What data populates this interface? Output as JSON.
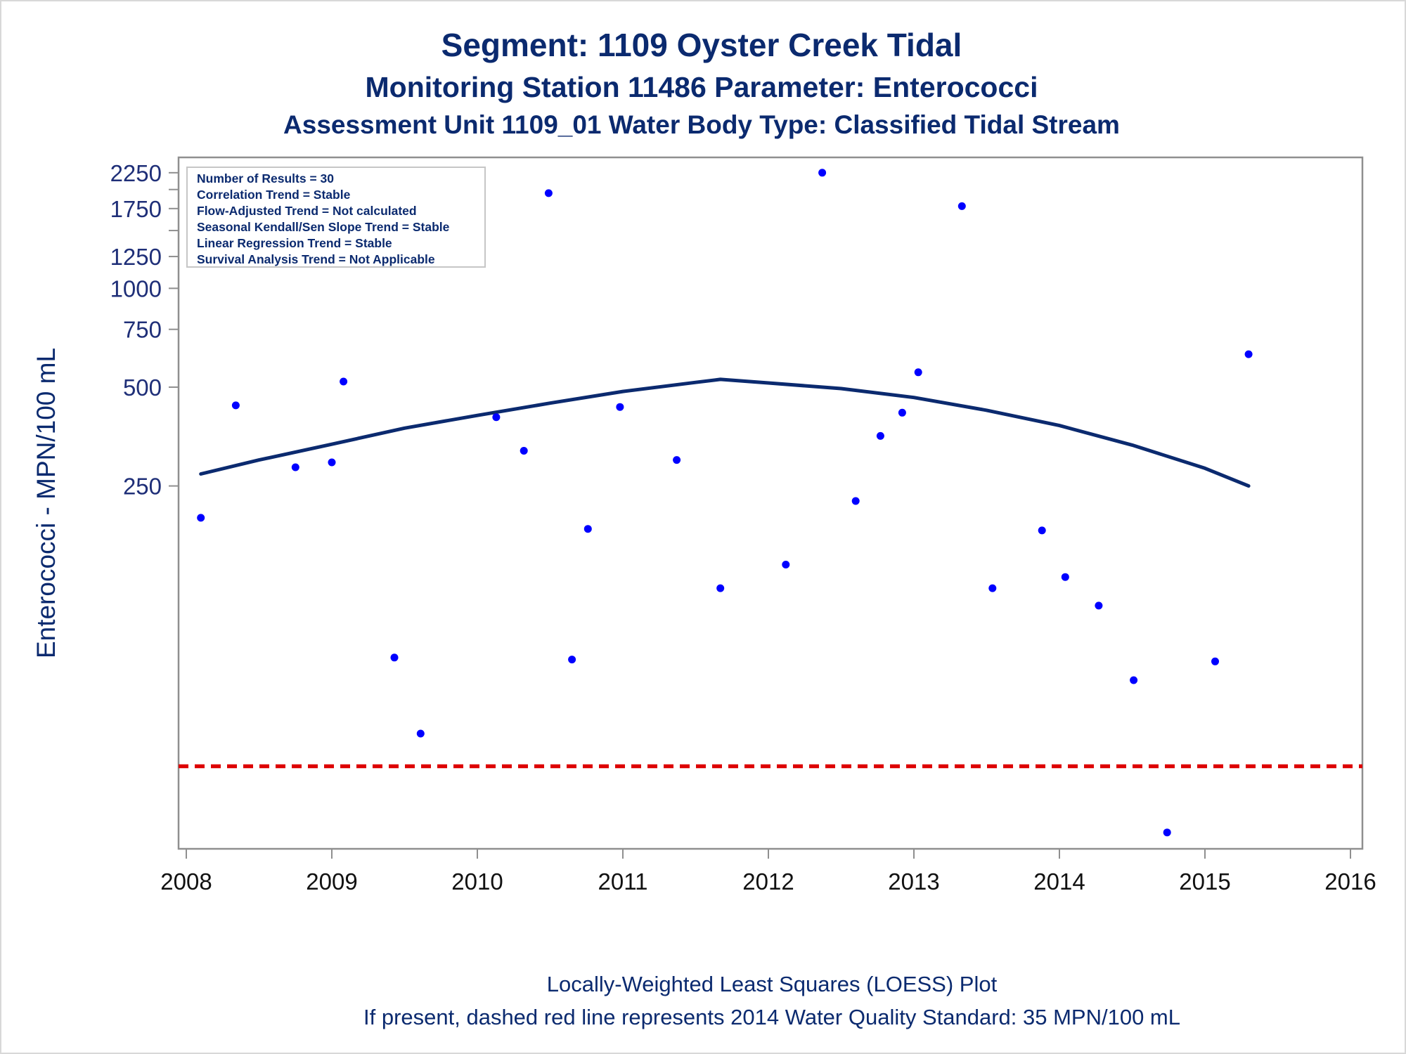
{
  "chart_data": {
    "type": "scatter",
    "title": "Segment: 1109  Oyster Creek Tidal",
    "subtitle": "Monitoring Station 11486 Parameter: Enterococci",
    "subtitle2": "Assessment Unit 1109_01   Water Body Type: Classified Tidal Stream",
    "ylabel": "Enterococci - MPN/100 mL",
    "xlabel": "",
    "x_axis": {
      "type": "time",
      "range": [
        2008,
        2016
      ],
      "ticks": [
        "2008",
        "2009",
        "2010",
        "2011",
        "2012",
        "2013",
        "2014",
        "2015",
        "2016"
      ]
    },
    "y_axis": {
      "scale": "log",
      "range": [
        20,
        2350
      ],
      "tick_labels": [
        "250",
        "500",
        "750",
        "1000",
        "1250",
        "1750",
        "2250"
      ],
      "minor_ticks_unlabeled": [
        1500,
        2000
      ]
    },
    "grid": false,
    "stats_box": {
      "position": "top-left",
      "lines": [
        "Number of Results = 30",
        "Correlation Trend = Stable",
        "Flow-Adjusted Trend = Not calculated",
        "Seasonal Kendall/Sen Slope Trend = Stable",
        "Linear Regression Trend = Stable",
        "Survival Analysis Trend = Not Applicable"
      ]
    },
    "series": [
      {
        "type": "scatter",
        "color": "#0000ff",
        "points": [
          {
            "x": 2008.1,
            "y": 200
          },
          {
            "x": 2008.34,
            "y": 440
          },
          {
            "x": 2008.75,
            "y": 285
          },
          {
            "x": 2009.0,
            "y": 295
          },
          {
            "x": 2009.08,
            "y": 520
          },
          {
            "x": 2009.43,
            "y": 75
          },
          {
            "x": 2009.61,
            "y": 44
          },
          {
            "x": 2010.13,
            "y": 405
          },
          {
            "x": 2010.32,
            "y": 320
          },
          {
            "x": 2010.49,
            "y": 1950
          },
          {
            "x": 2010.65,
            "y": 74
          },
          {
            "x": 2010.76,
            "y": 185
          },
          {
            "x": 2010.98,
            "y": 435
          },
          {
            "x": 2011.37,
            "y": 300
          },
          {
            "x": 2011.67,
            "y": 122
          },
          {
            "x": 2012.12,
            "y": 144
          },
          {
            "x": 2012.37,
            "y": 2250
          },
          {
            "x": 2012.6,
            "y": 225
          },
          {
            "x": 2012.77,
            "y": 355
          },
          {
            "x": 2012.92,
            "y": 418
          },
          {
            "x": 2013.03,
            "y": 555
          },
          {
            "x": 2013.33,
            "y": 1780
          },
          {
            "x": 2013.54,
            "y": 122
          },
          {
            "x": 2013.88,
            "y": 183
          },
          {
            "x": 2014.04,
            "y": 132
          },
          {
            "x": 2014.27,
            "y": 108
          },
          {
            "x": 2014.51,
            "y": 64
          },
          {
            "x": 2014.74,
            "y": 22
          },
          {
            "x": 2015.07,
            "y": 73
          },
          {
            "x": 2015.3,
            "y": 630
          }
        ]
      },
      {
        "type": "line",
        "color": "#0b2a6f",
        "points": [
          {
            "x": 2008.1,
            "y": 272
          },
          {
            "x": 2008.5,
            "y": 300
          },
          {
            "x": 2009.0,
            "y": 335
          },
          {
            "x": 2009.5,
            "y": 375
          },
          {
            "x": 2010.0,
            "y": 410
          },
          {
            "x": 2010.5,
            "y": 447
          },
          {
            "x": 2011.0,
            "y": 485
          },
          {
            "x": 2011.5,
            "y": 517
          },
          {
            "x": 2011.67,
            "y": 528
          },
          {
            "x": 2012.0,
            "y": 515
          },
          {
            "x": 2012.5,
            "y": 495
          },
          {
            "x": 2013.0,
            "y": 465
          },
          {
            "x": 2013.5,
            "y": 425
          },
          {
            "x": 2014.0,
            "y": 382
          },
          {
            "x": 2014.5,
            "y": 333
          },
          {
            "x": 2015.0,
            "y": 283
          },
          {
            "x": 2015.3,
            "y": 250
          }
        ]
      },
      {
        "type": "reference-line",
        "style": "dashed",
        "color": "#dd0000",
        "y": 35
      }
    ],
    "footnotes": [
      "Locally-Weighted Least Squares (LOESS) Plot",
      "If present, dashed red line represents 2014 Water Quality Standard: 35 MPN/100 mL"
    ]
  }
}
